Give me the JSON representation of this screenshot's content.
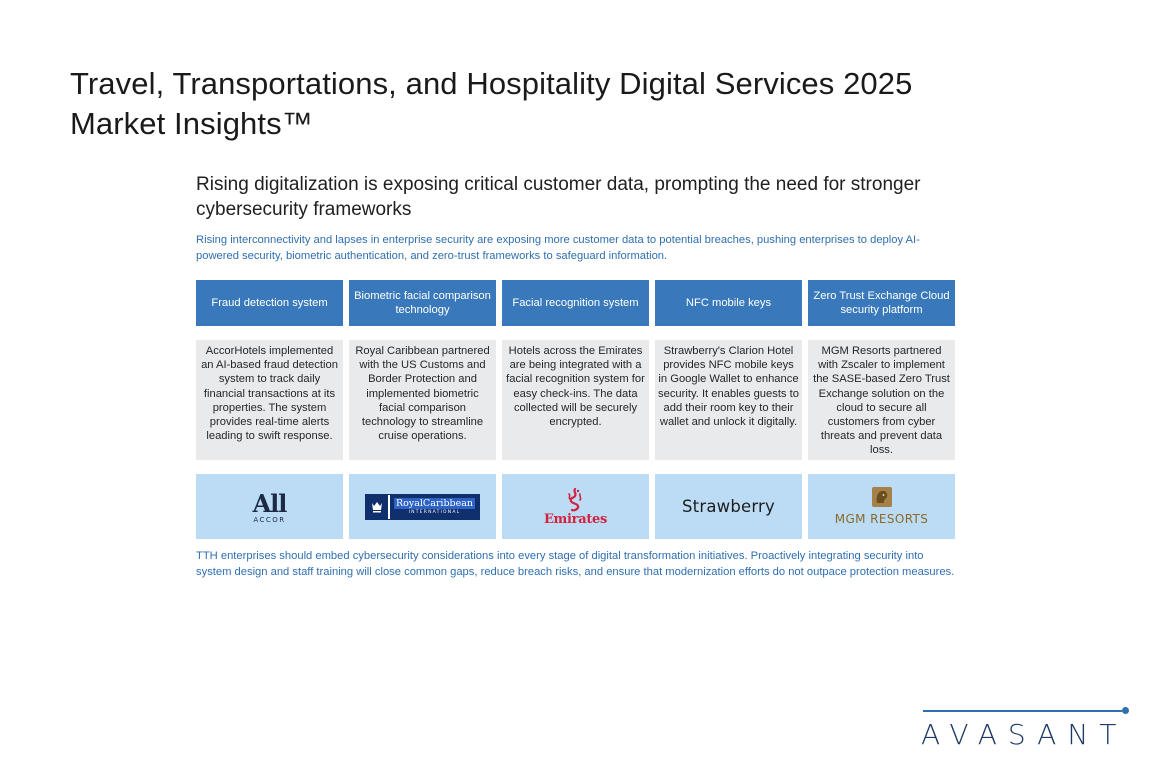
{
  "page": {
    "title": "Travel, Transportations, and Hospitality Digital Services 2025 Market Insights™"
  },
  "slide": {
    "heading": "Rising digitalization is exposing critical customer data, prompting the need for stronger cybersecurity frameworks",
    "intro": "Rising interconnectivity and lapses in enterprise security are exposing more customer data to potential breaches, pushing enterprises to deploy AI-powered security, biometric authentication, and zero-trust frameworks to safeguard information.",
    "columns": [
      {
        "header": "Fraud detection system",
        "description": "AccorHotels implemented an AI-based fraud detection system to track daily financial transactions at its properties. The system provides real-time alerts leading to swift response.",
        "logo": {
          "name": "accor-logo",
          "line1": "All",
          "line2": "ACCOR"
        }
      },
      {
        "header": "Biometric facial comparison technology",
        "description": "Royal Caribbean partnered with the US Customs and Border Protection and implemented biometric facial comparison technology to streamline cruise operations.",
        "logo": {
          "name": "royal-caribbean-logo",
          "line1": "RoyalCaribbean",
          "line2": "INTERNATIONAL"
        }
      },
      {
        "header": "Facial recognition system",
        "description": "Hotels across the Emirates are being integrated with a facial recognition system for easy check-ins. The data collected will be securely encrypted.",
        "logo": {
          "name": "emirates-logo",
          "line1": "Emirates"
        }
      },
      {
        "header": "NFC mobile keys",
        "description": "Strawberry's Clarion Hotel provides NFC mobile keys in Google Wallet to enhance security. It enables guests to add their room key to their wallet and unlock it digitally.",
        "logo": {
          "name": "strawberry-logo",
          "line1": "Strawberry"
        }
      },
      {
        "header": "Zero Trust Exchange Cloud security platform",
        "description": "MGM Resorts partnered with Zscaler to implement the SASE-based Zero Trust Exchange solution on the cloud to secure all customers from cyber threats and prevent data loss.",
        "logo": {
          "name": "mgm-resorts-logo",
          "line1": "MGM RESORTS"
        }
      }
    ],
    "closing": "TTH enterprises should embed cybersecurity considerations into every stage of digital transformation initiatives. Proactively integrating security into system design and staff training will close common gaps, reduce breach risks, and ensure that modernization efforts do not outpace protection measures."
  },
  "brand": {
    "name": "AVASANT"
  },
  "colors": {
    "header_blue": "#3979bb",
    "text_blue": "#2f6fb0",
    "desc_gray": "#e9eaec",
    "logo_bg": "#bcdcf5"
  }
}
